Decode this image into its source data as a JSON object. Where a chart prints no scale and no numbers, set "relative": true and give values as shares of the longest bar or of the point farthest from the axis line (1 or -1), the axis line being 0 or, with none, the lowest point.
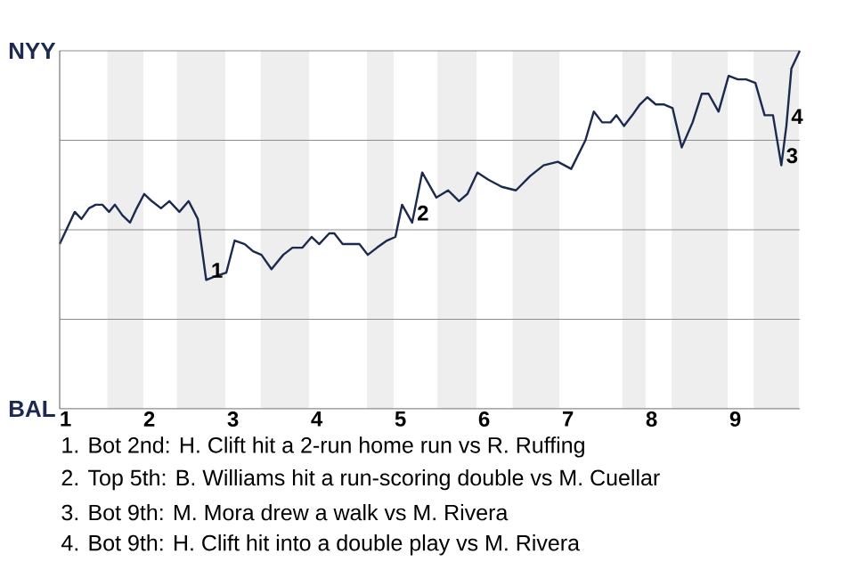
{
  "chart_data": {
    "type": "line",
    "relative": true,
    "xlim": [
      0.93,
      9.77
    ],
    "xticks": [
      1,
      2,
      3,
      4,
      5,
      6,
      7,
      8,
      9
    ],
    "marker": "none",
    "line_style": "solid",
    "ref_lines": [
      {
        "axis": "y",
        "value": 0,
        "color": "#8c8c8c",
        "label": "BAL"
      },
      {
        "axis": "y",
        "value": 0.25,
        "color": "#8c8c8c"
      },
      {
        "axis": "y",
        "value": 0.5,
        "color": "#8c8c8c"
      },
      {
        "axis": "y",
        "value": 0.75,
        "color": "#8c8c8c"
      },
      {
        "axis": "y",
        "value": 1,
        "color": "#8c8c8c",
        "label": "NYY"
      }
    ],
    "bands": [
      {
        "axis": "x",
        "from": 1.5,
        "to": 1.93,
        "color": "#eeeeee"
      },
      {
        "axis": "x",
        "from": 2.33,
        "to": 2.91,
        "color": "#eeeeee"
      },
      {
        "axis": "x",
        "from": 3.33,
        "to": 3.91,
        "color": "#eeeeee"
      },
      {
        "axis": "x",
        "from": 4.6,
        "to": 4.92,
        "color": "#eeeeee"
      },
      {
        "axis": "x",
        "from": 5.44,
        "to": 5.91,
        "color": "#eeeeee"
      },
      {
        "axis": "x",
        "from": 6.34,
        "to": 6.9,
        "color": "#eeeeee"
      },
      {
        "axis": "x",
        "from": 7.65,
        "to": 7.93,
        "color": "#eeeeee"
      },
      {
        "axis": "x",
        "from": 8.24,
        "to": 8.91,
        "color": "#eeeeee"
      },
      {
        "axis": "x",
        "from": 9.22,
        "to": 9.76,
        "color": "#eeeeee"
      }
    ],
    "series": [
      {
        "color": "#1b2a4e",
        "x": [
          0.93,
          1.03,
          1.11,
          1.19,
          1.28,
          1.36,
          1.44,
          1.52,
          1.59,
          1.68,
          1.77,
          1.85,
          1.94,
          2.03,
          2.14,
          2.24,
          2.36,
          2.47,
          2.58,
          2.68,
          2.79,
          2.92,
          3.02,
          3.14,
          3.24,
          3.34,
          3.46,
          3.6,
          3.71,
          3.83,
          3.94,
          4.03,
          4.15,
          4.21,
          4.31,
          4.41,
          4.51,
          4.61,
          4.72,
          4.84,
          4.94,
          5.02,
          5.14,
          5.26,
          5.43,
          5.57,
          5.7,
          5.8,
          5.92,
          6.05,
          6.21,
          6.38,
          6.55,
          6.71,
          6.88,
          7.04,
          7.21,
          7.31,
          7.41,
          7.51,
          7.58,
          7.67,
          7.77,
          7.86,
          7.95,
          8.05,
          8.15,
          8.25,
          8.36,
          8.49,
          8.6,
          8.68,
          8.8,
          8.92,
          9.03,
          9.13,
          9.24,
          9.35,
          9.45,
          9.55,
          9.61,
          9.67,
          9.77
        ],
        "values": [
          0.46,
          0.51,
          0.55,
          0.53,
          0.56,
          0.57,
          0.57,
          0.55,
          0.57,
          0.54,
          0.52,
          0.56,
          0.6,
          0.58,
          0.56,
          0.58,
          0.55,
          0.58,
          0.53,
          0.36,
          0.37,
          0.38,
          0.47,
          0.46,
          0.44,
          0.43,
          0.39,
          0.43,
          0.45,
          0.45,
          0.48,
          0.46,
          0.49,
          0.49,
          0.46,
          0.46,
          0.46,
          0.43,
          0.45,
          0.47,
          0.48,
          0.57,
          0.52,
          0.66,
          0.59,
          0.61,
          0.58,
          0.6,
          0.66,
          0.64,
          0.62,
          0.61,
          0.65,
          0.68,
          0.69,
          0.67,
          0.75,
          0.83,
          0.8,
          0.8,
          0.82,
          0.79,
          0.82,
          0.85,
          0.87,
          0.85,
          0.85,
          0.84,
          0.73,
          0.8,
          0.88,
          0.88,
          0.83,
          0.93,
          0.92,
          0.92,
          0.91,
          0.82,
          0.82,
          0.68,
          0.79,
          0.95,
          1.0
        ]
      }
    ],
    "annotations": [
      {
        "text": "1",
        "x": 2.68,
        "y": 0.36
      },
      {
        "text": "2",
        "x": 5.14,
        "y": 0.52
      },
      {
        "text": "3",
        "x": 9.55,
        "y": 0.68
      },
      {
        "text": "4",
        "x": 9.61,
        "y": 0.79
      },
      "1. Bot 2nd: H. Clift hit a 2-run home run vs R. Ruffing",
      "2. Top 5th: B. Williams hit a run-scoring double vs M. Cuellar",
      "3. Bot 9th: M. Mora drew a walk vs M. Rivera",
      "4. Bot 9th: H. Clift hit into a double play vs M. Rivera"
    ]
  }
}
